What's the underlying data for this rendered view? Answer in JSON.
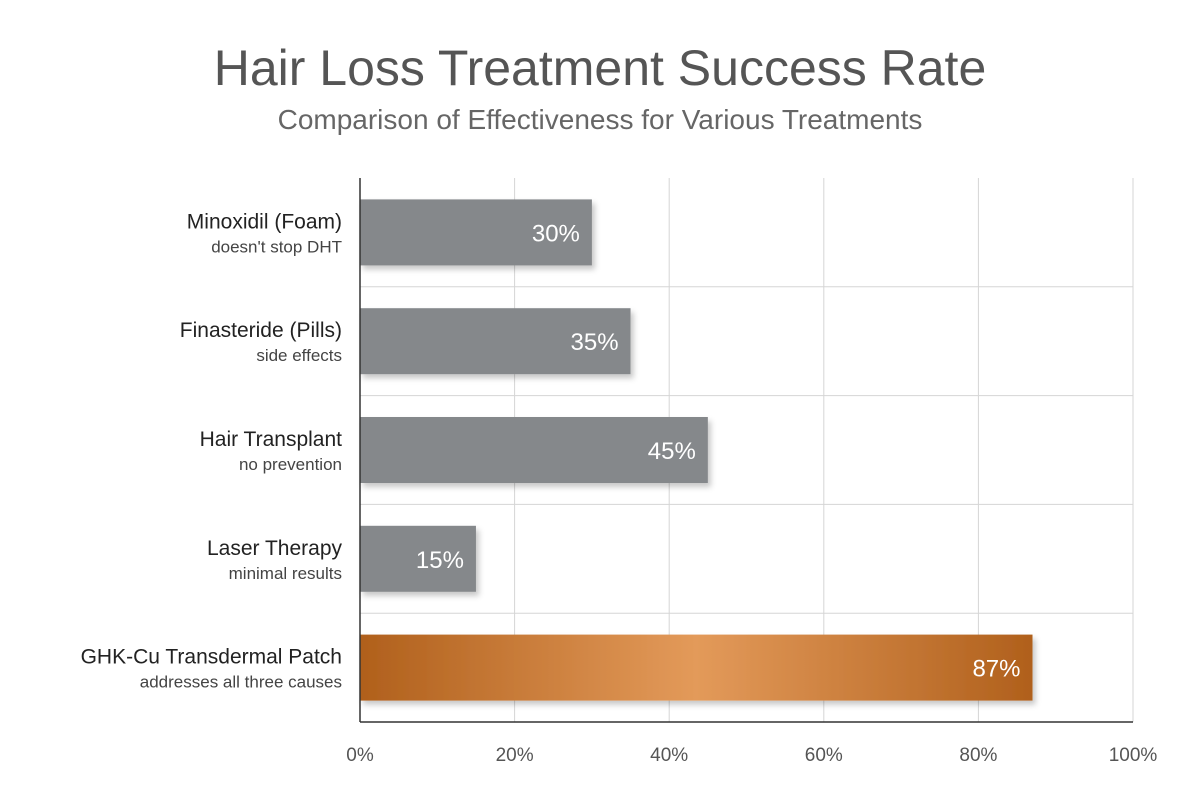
{
  "chart_data": {
    "type": "bar",
    "orientation": "horizontal",
    "title": "Hair Loss Treatment Success Rate",
    "subtitle": "Comparison of Effectiveness for Various Treatments",
    "categories": [
      "Minoxidil (Foam)",
      "Finasteride (Pills)",
      "Hair Transplant",
      "Laser Therapy",
      "GHK-Cu Transdermal Patch"
    ],
    "notes": [
      "doesn't stop DHT",
      "side effects",
      "no prevention",
      "minimal results",
      "addresses all three causes"
    ],
    "values": [
      30,
      35,
      45,
      15,
      87
    ],
    "value_labels": [
      "30%",
      "35%",
      "45%",
      "15%",
      "87%"
    ],
    "xlim": [
      0,
      100
    ],
    "xticks": [
      "0%",
      "20%",
      "40%",
      "60%",
      "80%",
      "100%"
    ],
    "grid": true,
    "highlight_index": 4,
    "colors": {
      "bar": "#85888b",
      "highlight_dark": "#b0601c",
      "highlight_light": "#e39a5a",
      "grid": "#d5d5d5",
      "axis": "#333333"
    }
  }
}
